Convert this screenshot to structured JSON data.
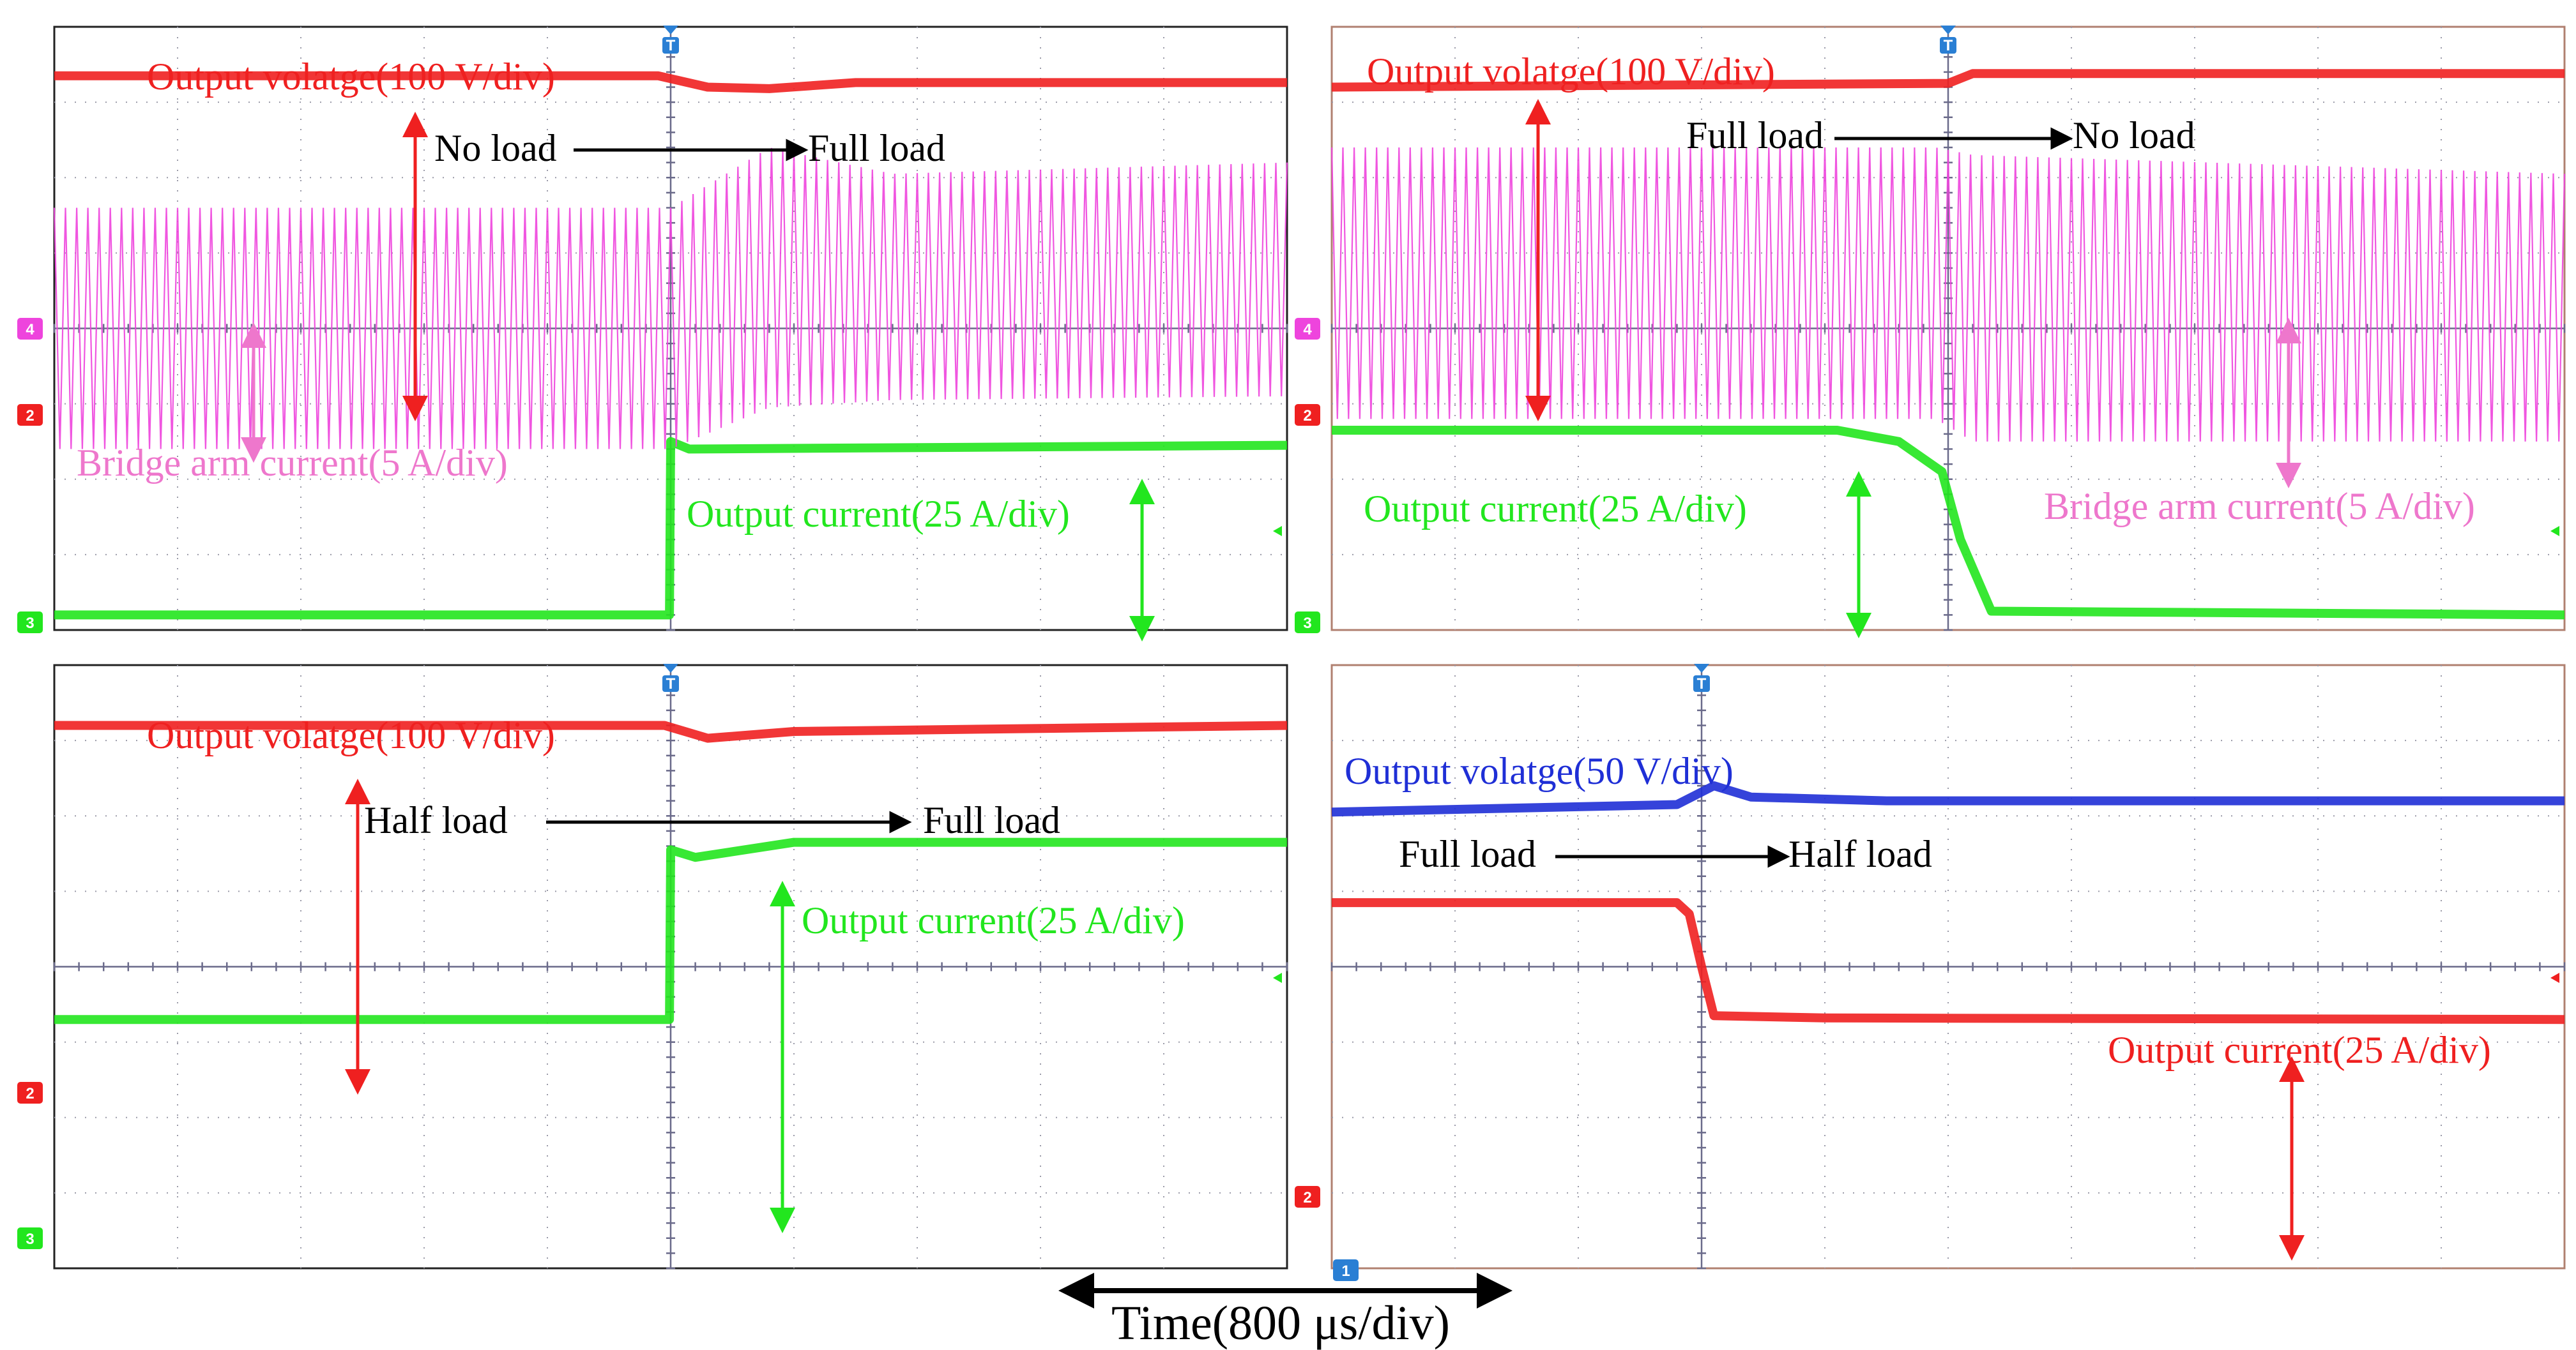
{
  "colors": {
    "voltage": "#ef2020",
    "voltage_blue": "#1f2fd6",
    "current": "#22e61e",
    "bridge": "#ee44dd",
    "bridge_text": "#ee77cc",
    "grid": "#9a9aa8",
    "center": "#6a6a8a",
    "marker_blue": "#2a7fd4"
  },
  "time_axis": {
    "label": "Time(800 μs/div)"
  },
  "chart_data": [
    {
      "type": "line",
      "panel": "top-left",
      "grid": true,
      "labels": {
        "voltage": "Output volatge(100 V/div)",
        "transition_from": "No load",
        "transition_to": "Full load",
        "bridge": "Bridge arm current(5 A/div)",
        "current": "Output current(25 A/div)"
      },
      "channel_markers": [
        "4",
        "2",
        "3"
      ],
      "x_divisions": [
        0,
        10
      ],
      "y_divisions": [
        -4,
        4
      ],
      "trigger_at_div": 5,
      "series": [
        {
          "name": "Output volatge(100 V/div)",
          "x": [
            0,
            4.9,
            5.3,
            5.8,
            6.5,
            10
          ],
          "y": [
            3.35,
            3.35,
            3.2,
            3.18,
            3.26,
            3.26
          ]
        },
        {
          "name": "Output current(25 A/div)",
          "x": [
            0,
            4.99,
            5.0,
            5.15,
            10
          ],
          "y": [
            -3.8,
            -3.8,
            -1.5,
            -1.6,
            -1.55
          ]
        },
        {
          "name": "Bridge arm current(5 A/div)",
          "envelope": "oscillation",
          "cycles": 110,
          "upper": [
            [
              0,
              1.6
            ],
            [
              5,
              1.6
            ],
            [
              5.8,
              2.4
            ],
            [
              6.8,
              2.05
            ],
            [
              10,
              2.2
            ]
          ],
          "lower": [
            [
              0,
              -1.6
            ],
            [
              5,
              -1.6
            ],
            [
              5.8,
              -1.05
            ],
            [
              6.8,
              -0.95
            ],
            [
              10,
              -0.9
            ]
          ]
        }
      ]
    },
    {
      "type": "line",
      "panel": "top-right",
      "grid": true,
      "labels": {
        "voltage": "Output volatge(100 V/div)",
        "transition_from": "Full load",
        "transition_to": "No load",
        "bridge": "Bridge arm current(5 A/div)",
        "current": "Output current(25 A/div)"
      },
      "channel_markers": [
        "4",
        "2",
        "3"
      ],
      "x_divisions": [
        0,
        10
      ],
      "y_divisions": [
        -4,
        4
      ],
      "trigger_at_div": 5,
      "series": [
        {
          "name": "Output volatge(100 V/div)",
          "x": [
            0,
            5,
            5.2,
            10
          ],
          "y": [
            3.2,
            3.25,
            3.38,
            3.38
          ]
        },
        {
          "name": "Output current(25 A/div)",
          "x": [
            0,
            4.1,
            4.6,
            4.95,
            5.1,
            5.35,
            10
          ],
          "y": [
            -1.35,
            -1.35,
            -1.5,
            -1.9,
            -2.8,
            -3.75,
            -3.8
          ]
        },
        {
          "name": "Bridge arm current(5 A/div)",
          "envelope": "oscillation",
          "cycles": 110,
          "upper": [
            [
              0,
              2.4
            ],
            [
              4.9,
              2.4
            ],
            [
              5.2,
              2.3
            ],
            [
              10,
              2.05
            ]
          ],
          "lower": [
            [
              0,
              -1.2
            ],
            [
              4.9,
              -1.2
            ],
            [
              5.2,
              -1.5
            ],
            [
              10,
              -1.5
            ]
          ]
        }
      ]
    },
    {
      "type": "line",
      "panel": "bottom-left",
      "grid": true,
      "labels": {
        "voltage": "Output volatge(100 V/div)",
        "transition_from": "Half load",
        "transition_to": "Full load",
        "current": "Output current(25 A/div)"
      },
      "channel_markers": [
        "2",
        "3"
      ],
      "x_divisions": [
        0,
        10
      ],
      "y_divisions": [
        -4,
        4
      ],
      "trigger_at_div": 5,
      "series": [
        {
          "name": "Output volatge(100 V/div)",
          "x": [
            0,
            4.95,
            5.3,
            6.0,
            10
          ],
          "y": [
            3.2,
            3.2,
            3.03,
            3.12,
            3.2
          ]
        },
        {
          "name": "Output current(25 A/div)",
          "x": [
            0,
            4.99,
            5.0,
            5.2,
            6.0,
            10
          ],
          "y": [
            -0.7,
            -0.7,
            1.55,
            1.45,
            1.65,
            1.65
          ]
        }
      ]
    },
    {
      "type": "line",
      "panel": "bottom-right",
      "grid": true,
      "labels": {
        "voltage": "Output volatge(50 V/div)",
        "transition_from": "Full load",
        "transition_to": "Half load",
        "current": "Output current(25 A/div)"
      },
      "channel_markers": [
        "2",
        "1"
      ],
      "x_divisions": [
        0,
        10
      ],
      "y_divisions": [
        -4,
        4
      ],
      "trigger_at_div": 3,
      "series": [
        {
          "name": "Output volatge(50 V/div)",
          "x": [
            0,
            2.8,
            3.1,
            3.4,
            4.5,
            10
          ],
          "y": [
            2.05,
            2.15,
            2.4,
            2.25,
            2.2,
            2.2
          ]
        },
        {
          "name": "Output current(25 A/div)",
          "x": [
            0,
            2.8,
            2.9,
            3.0,
            3.1,
            4.0,
            10
          ],
          "y": [
            0.85,
            0.85,
            0.7,
            0.0,
            -0.65,
            -0.68,
            -0.7
          ]
        }
      ]
    }
  ]
}
